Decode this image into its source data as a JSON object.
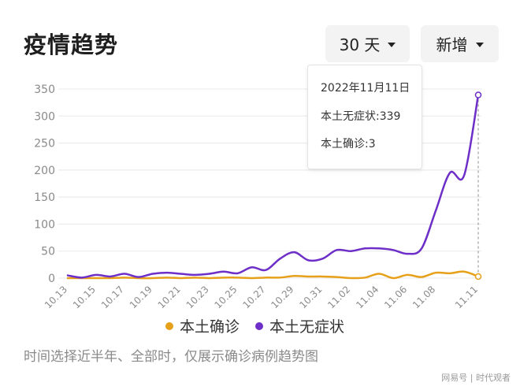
{
  "page": {
    "title": "疫情趋势",
    "caption": "时间选择近半年、全部时，仅展示确诊病例趋势图"
  },
  "controls": {
    "range": "30 天",
    "metric": "新增"
  },
  "tooltip": {
    "date": "2022年11月11日",
    "line1": "本土无症状:339",
    "line2": "本土确诊:3"
  },
  "watermark": "网易号 | 时代观者",
  "colors": {
    "confirmed": "#e6a01a",
    "asymptomatic": "#6d2fc7"
  },
  "chart_data": {
    "type": "line",
    "y_ticks": [
      "0",
      "50",
      "100",
      "150",
      "200",
      "250",
      "300",
      "350"
    ],
    "ylim": [
      0,
      350
    ],
    "x_tick_labels": [
      "10.13",
      "10.15",
      "10.17",
      "10.19",
      "10.21",
      "10.23",
      "10.25",
      "10.27",
      "10.29",
      "10.31",
      "11.02",
      "11.04",
      "11.06",
      "11.08",
      "11.11"
    ],
    "x": [
      "10.13",
      "10.14",
      "10.15",
      "10.16",
      "10.17",
      "10.18",
      "10.19",
      "10.20",
      "10.21",
      "10.22",
      "10.23",
      "10.24",
      "10.25",
      "10.26",
      "10.27",
      "10.28",
      "10.29",
      "10.30",
      "10.31",
      "11.01",
      "11.02",
      "11.03",
      "11.04",
      "11.05",
      "11.06",
      "11.07",
      "11.08",
      "11.09",
      "11.10",
      "11.11"
    ],
    "series": [
      {
        "name": "本土确诊",
        "key": "confirmed",
        "values": [
          0,
          0,
          0,
          0,
          1,
          0,
          0,
          1,
          0,
          1,
          0,
          1,
          1,
          0,
          1,
          1,
          4,
          3,
          3,
          2,
          0,
          1,
          8,
          0,
          6,
          2,
          10,
          9,
          12,
          3
        ]
      },
      {
        "name": "本土无症状",
        "key": "asymptomatic",
        "values": [
          5,
          1,
          6,
          3,
          8,
          2,
          8,
          10,
          8,
          6,
          8,
          12,
          9,
          20,
          15,
          36,
          48,
          33,
          36,
          52,
          50,
          55,
          55,
          52,
          45,
          55,
          125,
          195,
          190,
          339
        ]
      }
    ],
    "grid": true,
    "legend": "bottom",
    "highlight_index": 29
  }
}
